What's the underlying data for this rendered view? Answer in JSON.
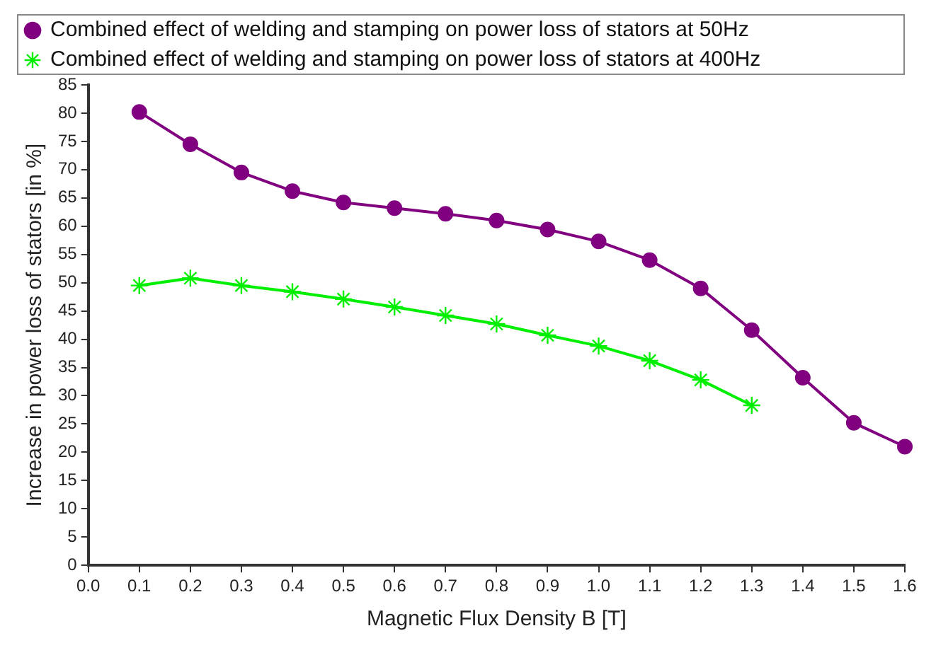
{
  "chart_data": {
    "type": "line",
    "xlabel": "Magnetic Flux Density B [T]",
    "ylabel": "Increase in power loss of stators [in %]",
    "xlim": [
      0,
      1.6
    ],
    "xticks": [
      {
        "value": 0,
        "label": "0.0"
      },
      0.1,
      0.2,
      0.3,
      0.4,
      0.5,
      0.6,
      0.7,
      0.8,
      0.9,
      {
        "value": 1,
        "label": "1.0"
      },
      1.1,
      1.2,
      1.3,
      1.4,
      1.5,
      1.6
    ],
    "ylim": [
      0,
      85
    ],
    "yticks": [
      0,
      5,
      10,
      15,
      20,
      25,
      30,
      35,
      40,
      45,
      50,
      55,
      60,
      65,
      70,
      75,
      80,
      85
    ],
    "grid": false,
    "legend": "top",
    "line_style": "solid",
    "series": [
      {
        "name": "Combined effect of welding and stamping on power loss of stators at 50Hz",
        "color": "#800080",
        "marker": "circle",
        "x": [
          0.1,
          0.2,
          0.3,
          0.4,
          0.5,
          0.6,
          0.7,
          0.8,
          0.9,
          1.0,
          1.1,
          1.2,
          1.3,
          1.4,
          1.5,
          1.6
        ],
        "values": [
          80.2,
          74.5,
          69.5,
          66.2,
          64.2,
          63.2,
          62.2,
          61.0,
          59.4,
          57.3,
          54.0,
          49.0,
          41.6,
          33.2,
          25.2,
          21.0
        ]
      },
      {
        "name": "Combined effect of welding and stamping on power loss of stators at 400Hz",
        "color": "#00ee00",
        "marker": "cross",
        "x": [
          0.1,
          0.2,
          0.3,
          0.4,
          0.5,
          0.6,
          0.7,
          0.8,
          0.9,
          1.0,
          1.1,
          1.2,
          1.3
        ],
        "values": [
          49.5,
          50.8,
          49.5,
          48.4,
          47.1,
          45.7,
          44.2,
          42.7,
          40.7,
          38.8,
          36.2,
          32.8,
          28.3
        ]
      }
    ]
  }
}
